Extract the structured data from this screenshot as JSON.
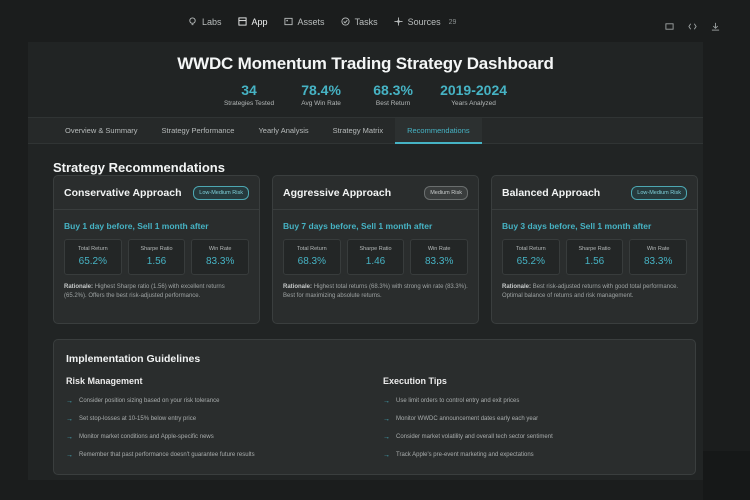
{
  "nav": {
    "items": [
      {
        "label": "Labs",
        "icon": "bulb-icon"
      },
      {
        "label": "App",
        "icon": "app-icon",
        "active": true
      },
      {
        "label": "Assets",
        "icon": "image-icon"
      },
      {
        "label": "Tasks",
        "icon": "check-circle-icon"
      },
      {
        "label": "Sources",
        "icon": "sources-icon",
        "badge": "29"
      }
    ]
  },
  "header": {
    "title": "WWDC Momentum Trading Strategy Dashboard",
    "stats": [
      {
        "value": "34",
        "label": "Strategies Tested"
      },
      {
        "value": "78.4%",
        "label": "Avg Win Rate"
      },
      {
        "value": "68.3%",
        "label": "Best Return"
      },
      {
        "value": "2019-2024",
        "label": "Years Analyzed"
      }
    ]
  },
  "tabs": [
    {
      "label": "Overview & Summary"
    },
    {
      "label": "Strategy Performance"
    },
    {
      "label": "Yearly Analysis"
    },
    {
      "label": "Strategy Matrix"
    },
    {
      "label": "Recommendations",
      "active": true
    }
  ],
  "recommendations": {
    "title": "Strategy Recommendations",
    "cards": [
      {
        "title": "Conservative Approach",
        "risk": "Low-Medium Risk",
        "strategy": "Buy 1 day before, Sell 1 month after",
        "metrics": [
          {
            "label": "Total Return",
            "value": "65.2%"
          },
          {
            "label": "Sharpe Ratio",
            "value": "1.56"
          },
          {
            "label": "Win Rate",
            "value": "83.3%"
          }
        ],
        "rationale_label": "Rationale:",
        "rationale": "Highest Sharpe ratio (1.56) with excellent returns (65.2%). Offers the best risk-adjusted performance."
      },
      {
        "title": "Aggressive Approach",
        "risk": "Medium Risk",
        "strategy": "Buy 7 days before, Sell 1 month after",
        "metrics": [
          {
            "label": "Total Return",
            "value": "68.3%"
          },
          {
            "label": "Sharpe Ratio",
            "value": "1.46"
          },
          {
            "label": "Win Rate",
            "value": "83.3%"
          }
        ],
        "rationale_label": "Rationale:",
        "rationale": "Highest total returns (68.3%) with strong win rate (83.3%). Best for maximizing absolute returns."
      },
      {
        "title": "Balanced Approach",
        "risk": "Low-Medium Risk",
        "strategy": "Buy 3 days before, Sell 1 month after",
        "metrics": [
          {
            "label": "Total Return",
            "value": "65.2%"
          },
          {
            "label": "Sharpe Ratio",
            "value": "1.56"
          },
          {
            "label": "Win Rate",
            "value": "83.3%"
          }
        ],
        "rationale_label": "Rationale:",
        "rationale": "Best risk-adjusted returns with good total performance. Optimal balance of returns and risk management."
      }
    ]
  },
  "guidelines": {
    "title": "Implementation Guidelines",
    "risk_title": "Risk Management",
    "risk_items": [
      "Consider position sizing based on your risk tolerance",
      "Set stop-losses at 10-15% below entry price",
      "Monitor market conditions and Apple-specific news",
      "Remember that past performance doesn't guarantee future results"
    ],
    "exec_title": "Execution Tips",
    "exec_items": [
      "Use limit orders to control entry and exit prices",
      "Monitor WWDC announcement dates early each year",
      "Consider market volatility and overall tech sector sentiment",
      "Track Apple's pre-event marketing and expectations"
    ]
  },
  "colors": {
    "accent": "#46b3c4",
    "background": "#1b1d1d",
    "card": "#2a2d2d"
  }
}
